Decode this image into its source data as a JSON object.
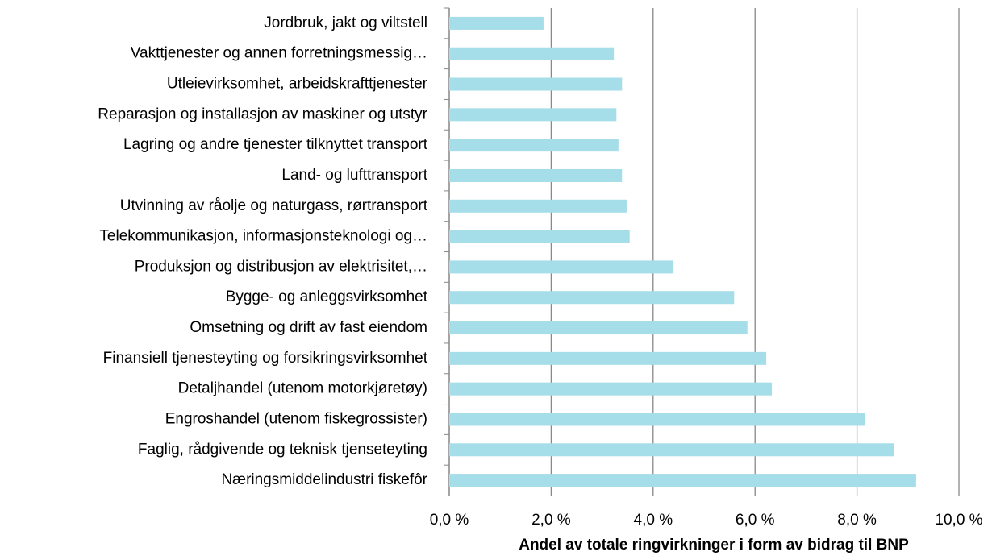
{
  "chart_data": {
    "type": "barh",
    "xlabel": "Andel av totale ringvirkninger i form av bidrag til BNP",
    "categories": [
      "Jordbruk, jakt og viltstell",
      "Vakttjenester og annen forretningsmessig…",
      "Utleievirksomhet, arbeidskrafttjenester",
      "Reparasjon og installasjon av maskiner og utstyr",
      "Lagring og andre tjenester tilknyttet transport",
      "Land- og lufttransport",
      "Utvinning av råolje og naturgass, rørtransport",
      "Telekommunikasjon, informasjonsteknologi og…",
      "Produksjon og distribusjon av elektrisitet,…",
      "Bygge- og anleggsvirksomhet",
      "Omsetning og drift av fast eiendom",
      "Finansiell tjenesteyting og forsikringsvirksomhet",
      "Detaljhandel (utenom motorkjøretøy)",
      "Engroshandel (utenom fiskegrossister)",
      "Faglig, rådgivende og teknisk tjenseteyting",
      "Næringsmiddelindustri fiskefôr"
    ],
    "values": [
      1.85,
      3.23,
      3.39,
      3.28,
      3.32,
      3.39,
      3.48,
      3.54,
      4.4,
      5.59,
      5.85,
      6.22,
      6.33,
      8.16,
      8.72,
      9.16
    ],
    "color": "#a5dde8",
    "xlim": [
      0,
      10
    ],
    "xticks": [
      {
        "value": 0,
        "label": "0,0 %"
      },
      {
        "value": 2,
        "label": "2,0 %"
      },
      {
        "value": 4,
        "label": "4,0 %"
      },
      {
        "value": 6,
        "label": "6,0 %"
      },
      {
        "value": 8,
        "label": "8,0 %"
      },
      {
        "value": 10,
        "label": "10,0 %"
      }
    ],
    "grid": true
  }
}
